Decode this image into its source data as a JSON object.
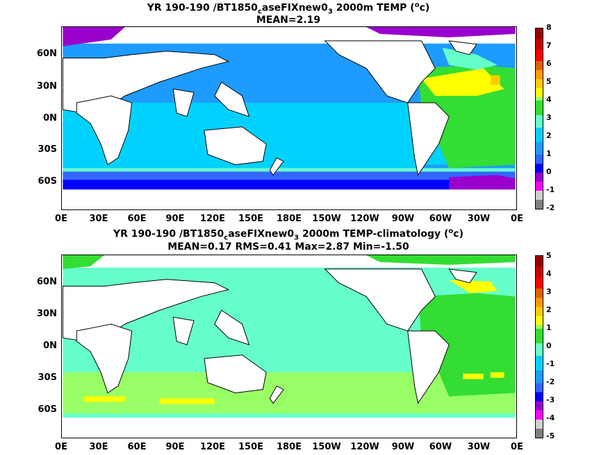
{
  "panels": [
    {
      "title_prefix": "YR 190-190 /BT1850",
      "title_sub": "c",
      "title_mid": "aseFIXnew0",
      "title_sub2": "3",
      "title_suffix": " 2000m TEMP (",
      "title_sup": "o",
      "title_end": "c)",
      "stats": "MEAN=2.19",
      "colorbar_labels": [
        "8",
        "7",
        "6",
        "5",
        "4",
        "3",
        "2",
        "1",
        "0",
        "-1",
        "-2"
      ]
    },
    {
      "title_prefix": "YR 190-190 /BT1850",
      "title_sub": "c",
      "title_mid": "aseFIXnew0",
      "title_sub2": "3",
      "title_suffix": " 2000m TEMP-climatology (",
      "title_sup": "o",
      "title_end": "c)",
      "stats": "MEAN=0.17   RMS=0.41   Max=2.87   Min=-1.50",
      "colorbar_labels": [
        "5",
        "4",
        "3",
        "2",
        "1",
        "0",
        "-1",
        "-2",
        "-3",
        "-4",
        "-5"
      ]
    }
  ],
  "lat_labels": [
    "60N",
    "30N",
    "0N",
    "30S",
    "60S"
  ],
  "lon_labels": [
    "0E",
    "30E",
    "60E",
    "90E",
    "120E",
    "150E",
    "180E",
    "150W",
    "120W",
    "90W",
    "60W",
    "30W",
    "0E"
  ],
  "colors": {
    "top_bar": [
      "#7f7f7f",
      "#cfcfcf",
      "#ff00ff",
      "#9900cc",
      "#0000ff",
      "#3366ff",
      "#1e9bff",
      "#00d2ff",
      "#66ffcc",
      "#33dd33",
      "#99ff66",
      "#ffff00",
      "#ffcc00",
      "#ff9900",
      "#e06000",
      "#ff0000",
      "#cc0000",
      "#990000"
    ],
    "bottom_bar": [
      "#7f7f7f",
      "#cfcfcf",
      "#ff00ff",
      "#9900cc",
      "#0000ff",
      "#3366ff",
      "#1e9bff",
      "#00d2ff",
      "#66ffcc",
      "#33dd33",
      "#99ff66",
      "#ffff00",
      "#ffcc00",
      "#ff9900",
      "#e06000",
      "#ff0000",
      "#cc0000",
      "#990000"
    ]
  }
}
